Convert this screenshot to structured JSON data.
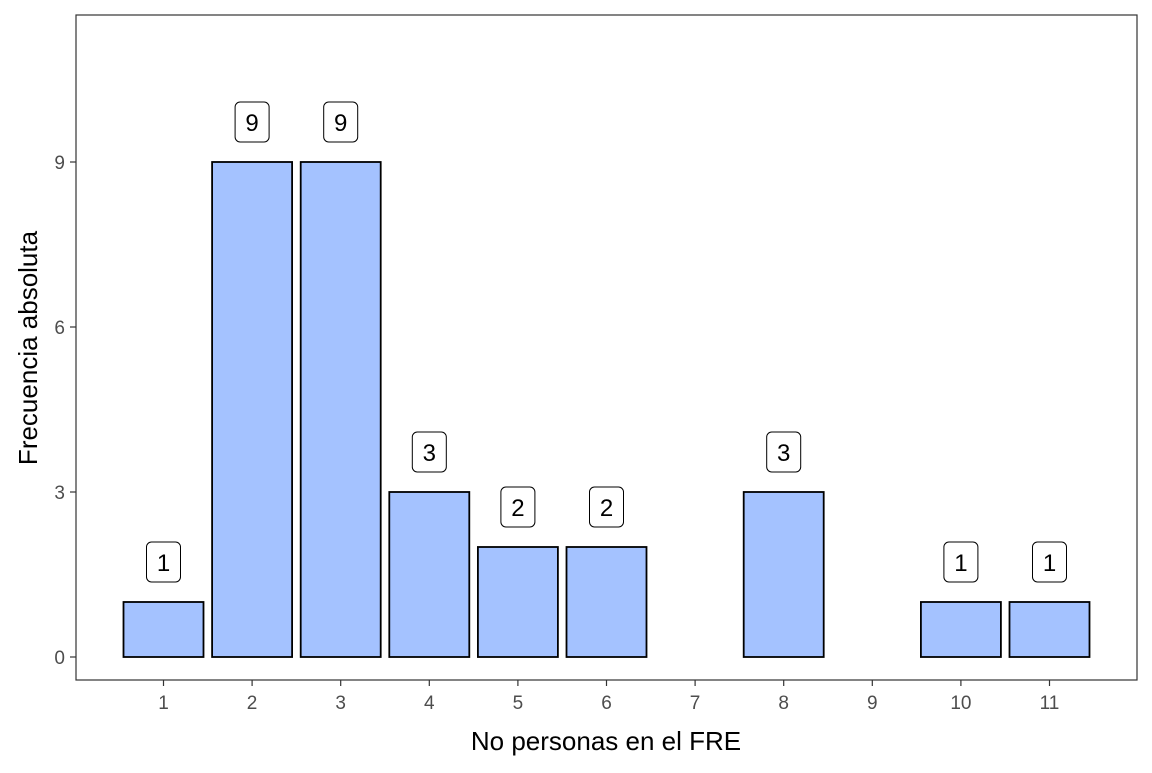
{
  "chart_data": {
    "type": "bar",
    "title": "",
    "xlabel": "No personas en el FRE",
    "ylabel": "Frecuencia absoluta",
    "categories": [
      "1",
      "2",
      "3",
      "4",
      "5",
      "6",
      "7",
      "8",
      "9",
      "10",
      "11"
    ],
    "values": [
      1,
      9,
      9,
      3,
      2,
      2,
      0,
      3,
      0,
      1,
      1
    ],
    "data_labels": [
      "1",
      "9",
      "9",
      "3",
      "2",
      "2",
      "",
      "3",
      "",
      "1",
      "1"
    ],
    "y_ticks": [
      0,
      3,
      6,
      9
    ],
    "ylim": [
      0,
      11.3
    ],
    "grid": false,
    "legend": "none",
    "bar_color": "#A4C2FF",
    "bar_outline": "#000000"
  }
}
